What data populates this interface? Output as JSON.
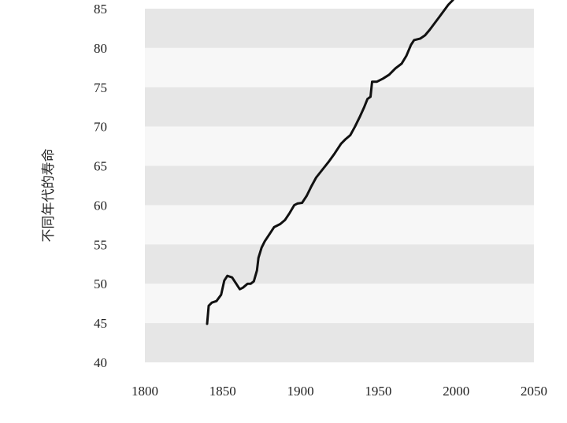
{
  "chart_data": {
    "type": "line",
    "title": "",
    "xlabel": "",
    "ylabel": "不同年代的寿命",
    "xlim": [
      1800,
      2050
    ],
    "ylim": [
      40,
      85
    ],
    "x_ticks": [
      "1800",
      "1850",
      "1900",
      "1950",
      "2000",
      "2050"
    ],
    "y_ticks": [
      "40",
      "45",
      "50",
      "55",
      "60",
      "65",
      "70",
      "75",
      "80",
      "85"
    ],
    "band_colors": [
      "#e6e6e6",
      "#f7f7f7"
    ],
    "line_color": "#111111",
    "grid": false,
    "legend": "none",
    "series": [
      {
        "x": [
          1840,
          1841,
          1843,
          1846,
          1849,
          1851,
          1853,
          1856,
          1859,
          1861,
          1863,
          1866,
          1868,
          1870,
          1872,
          1873,
          1875,
          1877,
          1880,
          1883,
          1887,
          1890,
          1893,
          1896,
          1898,
          1901,
          1904,
          1907,
          1910,
          1914,
          1918,
          1922,
          1926,
          1929,
          1932,
          1935,
          1938,
          1941,
          1943,
          1945,
          1946,
          1947,
          1949,
          1953,
          1957,
          1961,
          1965,
          1968,
          1971,
          1973,
          1975,
          1977,
          1980,
          1983,
          1986,
          1989,
          1992,
          1995,
          1998
        ],
        "values": [
          44.9,
          47.2,
          47.6,
          47.8,
          48.6,
          50.4,
          51.0,
          50.8,
          49.9,
          49.3,
          49.5,
          50.0,
          50.0,
          50.3,
          51.7,
          53.3,
          54.6,
          55.4,
          56.3,
          57.2,
          57.6,
          58.1,
          59.0,
          60.0,
          60.2,
          60.3,
          61.2,
          62.4,
          63.5,
          64.5,
          65.5,
          66.6,
          67.8,
          68.4,
          68.9,
          70.0,
          71.2,
          72.5,
          73.5,
          73.8,
          75.7,
          75.7,
          75.7,
          76.1,
          76.6,
          77.4,
          78.0,
          79.0,
          80.4,
          81.0,
          81.1,
          81.2,
          81.6,
          82.3,
          83.1,
          83.9,
          84.7,
          85.5,
          86.1
        ]
      }
    ]
  }
}
